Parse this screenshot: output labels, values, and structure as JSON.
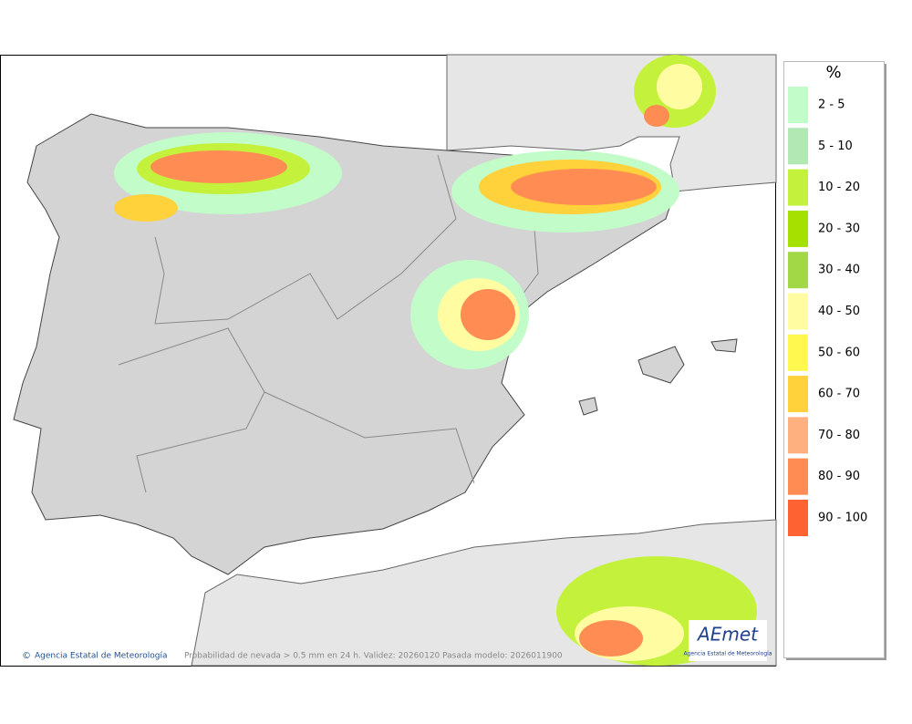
{
  "map": {
    "credit": "Agencia Estatal de Meteorología",
    "caption": "Probabilidad de nevada > 0.5 mm en 24 h. Validez: 20260120 Pasada modelo: 2026011900",
    "logo": {
      "name": "AEmet",
      "subtitle": "Agencia Estatal de Meteorología"
    }
  },
  "legend": {
    "title": "%",
    "items": [
      {
        "label": "2 - 5",
        "color": "#c2fcc8"
      },
      {
        "label": "5 - 10",
        "color": "#b2e8b4"
      },
      {
        "label": "10 - 20",
        "color": "#c4f23c"
      },
      {
        "label": "20 - 30",
        "color": "#a6e000"
      },
      {
        "label": "30 - 40",
        "color": "#a2d846"
      },
      {
        "label": "40 - 50",
        "color": "#fffca2"
      },
      {
        "label": "50 - 60",
        "color": "#fff84e"
      },
      {
        "label": "60 - 70",
        "color": "#ffd23c"
      },
      {
        "label": "70 - 80",
        "color": "#ffb07e"
      },
      {
        "label": "80 - 90",
        "color": "#ff8c52"
      },
      {
        "label": "90 - 100",
        "color": "#ff6232"
      }
    ]
  }
}
